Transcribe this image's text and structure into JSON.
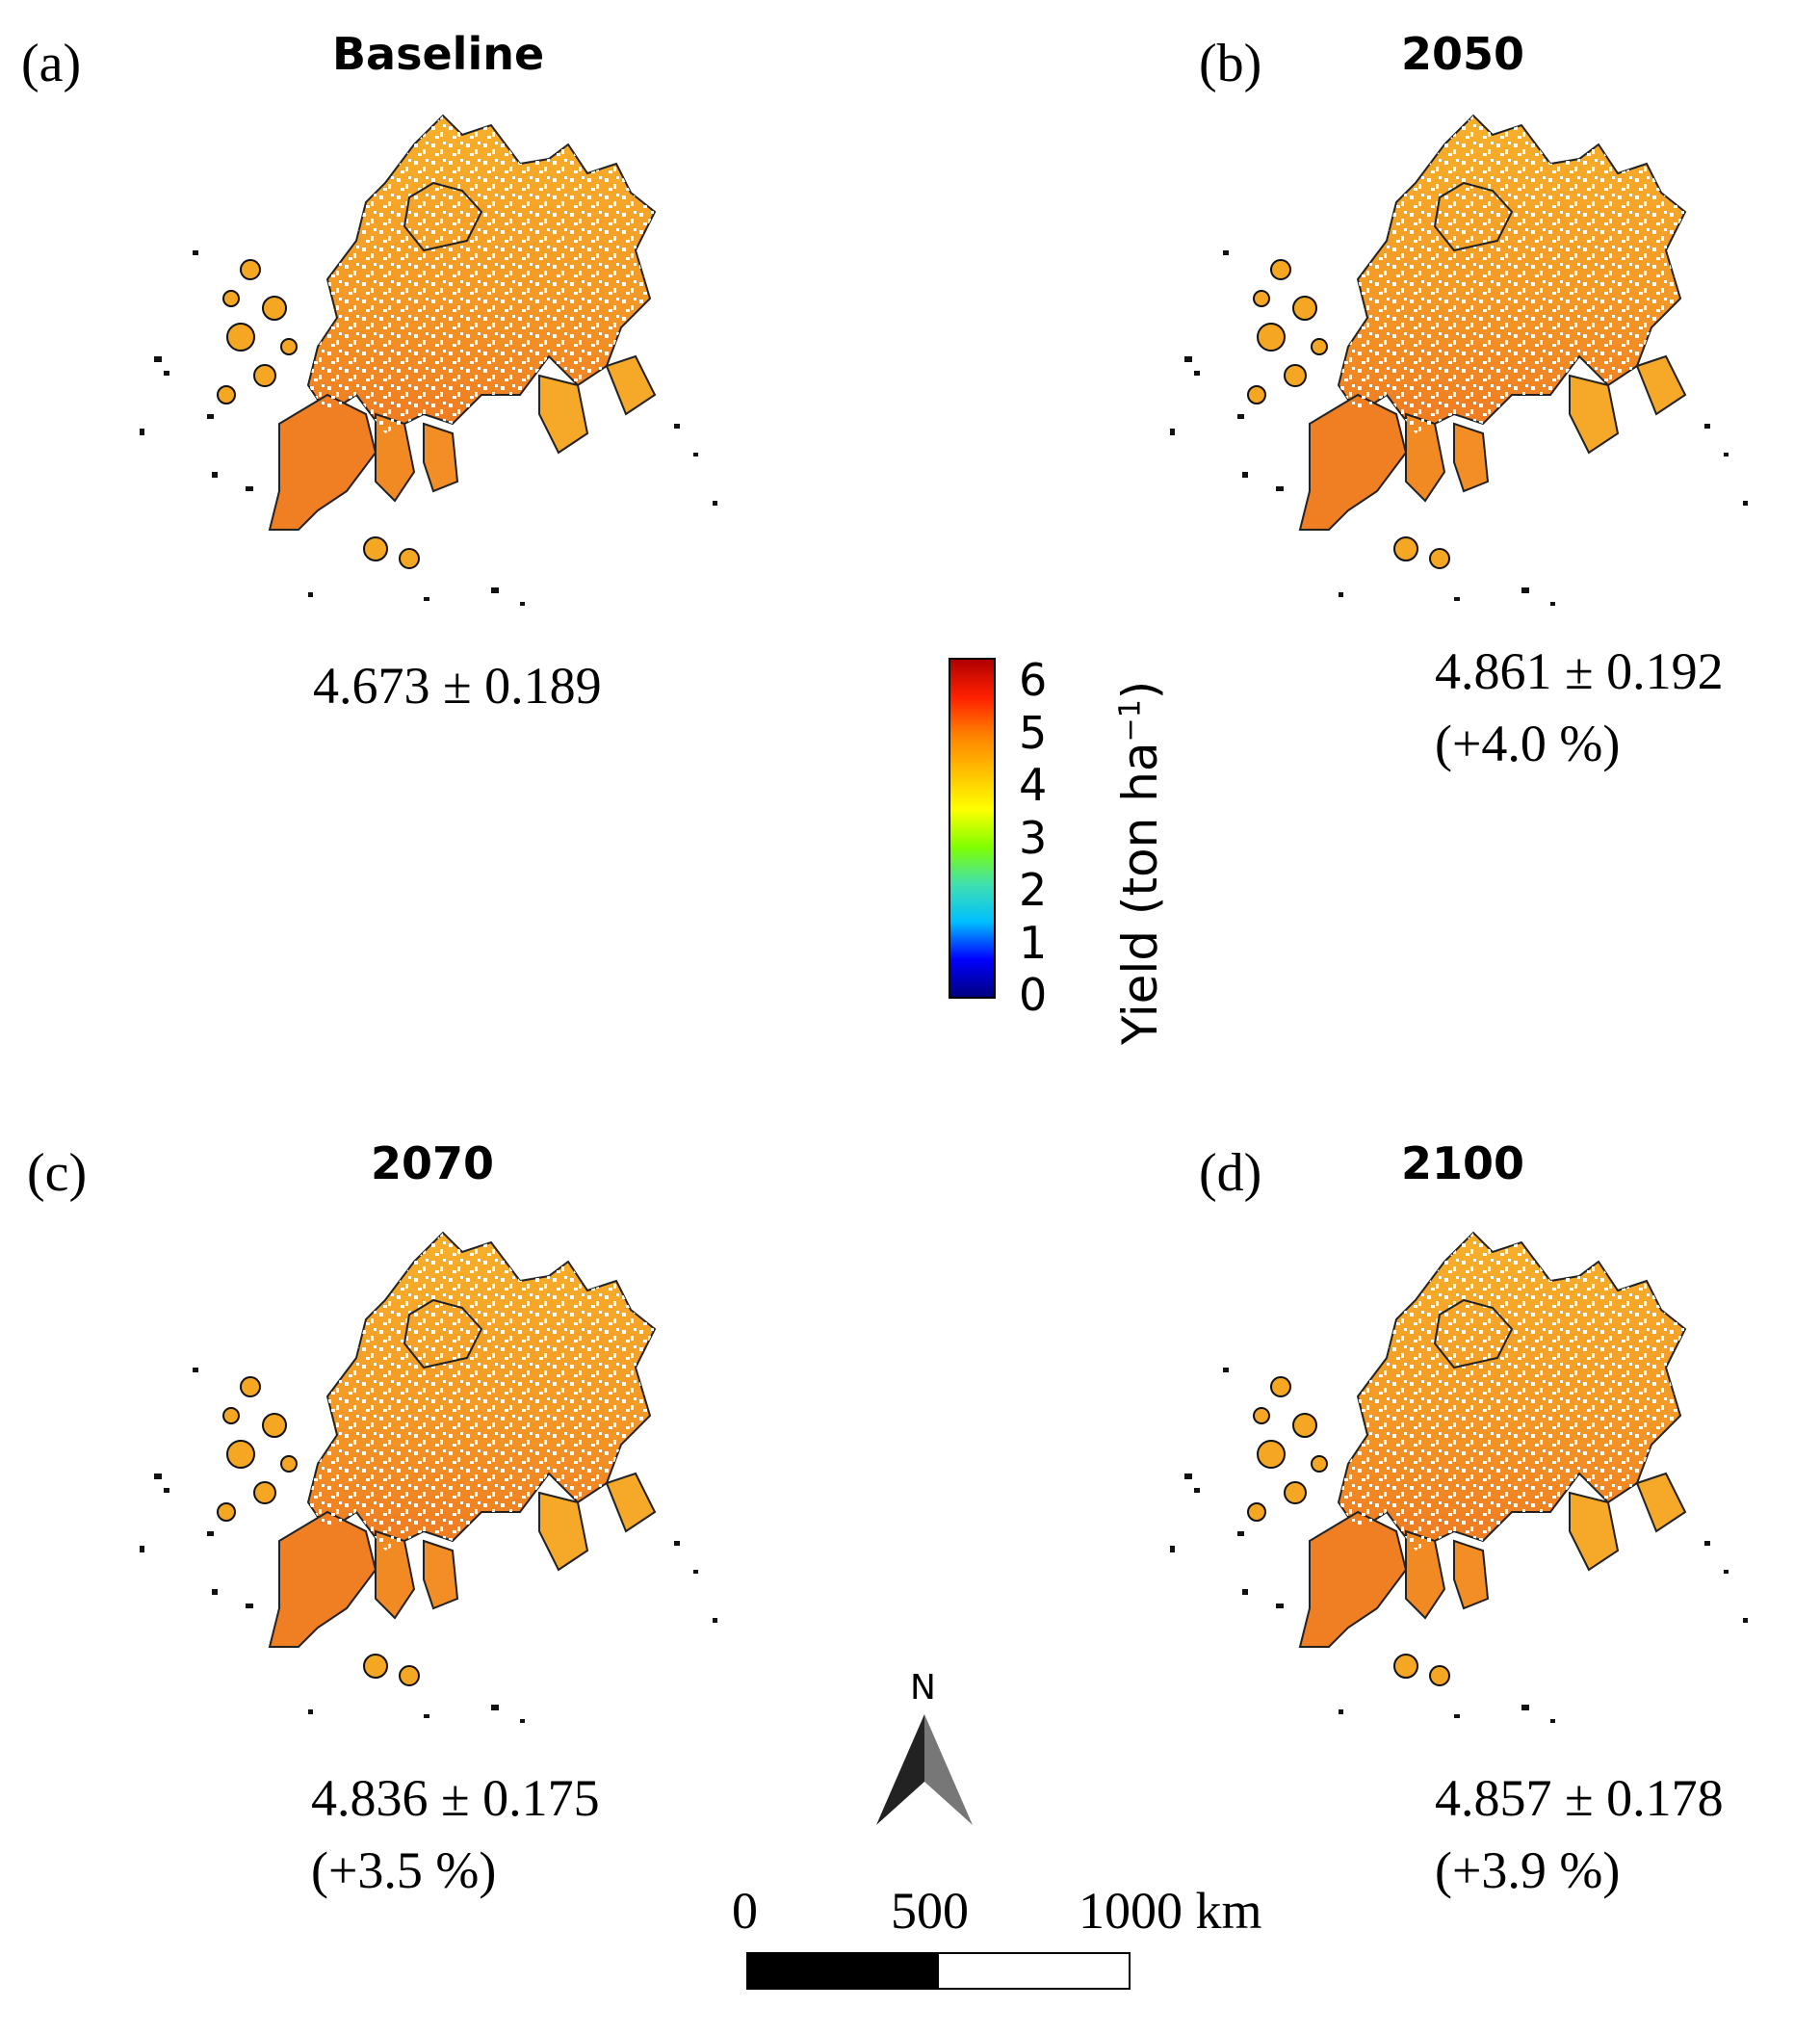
{
  "panels": [
    {
      "label": "(a)",
      "title": "Baseline",
      "mean_sd": "4.673 ± 0.189",
      "change": ""
    },
    {
      "label": "(b)",
      "title": "2050",
      "mean_sd": "4.861 ± 0.192",
      "change": "(+4.0 %)"
    },
    {
      "label": "(c)",
      "title": "2070",
      "mean_sd": "4.836 ± 0.175",
      "change": "(+3.5 %)"
    },
    {
      "label": "(d)",
      "title": "2100",
      "mean_sd": "4.857 ± 0.178",
      "change": "(+3.9 %)"
    }
  ],
  "colorbar": {
    "title": "Yield (ton ha",
    "title_sup": "−1",
    "title_end": ")",
    "ticks": [
      "0",
      "1",
      "2",
      "3",
      "4",
      "5",
      "6"
    ],
    "colors": [
      "#000080",
      "#0000ff",
      "#00bfff",
      "#40e0b0",
      "#80ff00",
      "#ffff00",
      "#ffc000",
      "#ff8000",
      "#ff2000",
      "#b00000"
    ]
  },
  "north_arrow": {
    "label": "N"
  },
  "scalebar": {
    "labels": [
      "0",
      "500",
      "1000 km"
    ]
  },
  "colors": {
    "map_fill_main": "#f5a623",
    "map_fill_south": "#f07f22",
    "outline": "#111111"
  }
}
